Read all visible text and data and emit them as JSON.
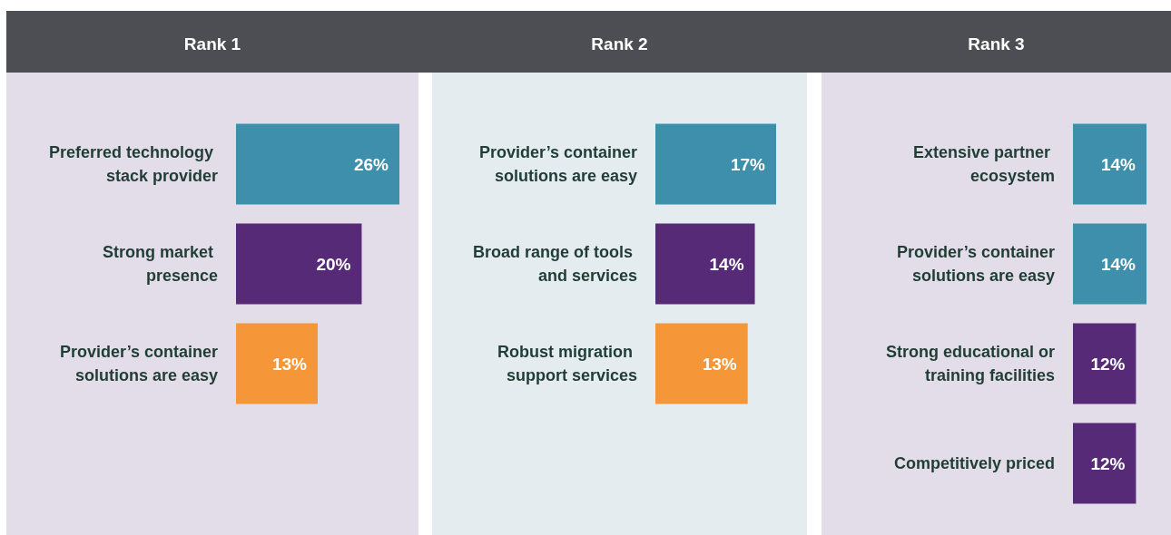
{
  "chart_data": [
    {
      "type": "bar",
      "orientation": "horizontal",
      "title": "Rank 1",
      "categories": [
        "Preferred technology stack provider",
        "Strong market presence",
        "Provider’s container solutions are easy"
      ],
      "values": [
        26,
        20,
        13
      ],
      "colors": [
        "#3e8fab",
        "#562a77",
        "#f59738"
      ],
      "value_labels": [
        "26%",
        "20%",
        "13%"
      ],
      "xlim": [
        0,
        26
      ]
    },
    {
      "type": "bar",
      "orientation": "horizontal",
      "title": "Rank 2",
      "categories": [
        "Provider’s container solutions are easy",
        "Broad range of tools and services",
        "Robust migration support services"
      ],
      "values": [
        17,
        14,
        13
      ],
      "colors": [
        "#3e8fab",
        "#562a77",
        "#f59738"
      ],
      "value_labels": [
        "17%",
        "14%",
        "13%"
      ],
      "xlim": [
        0,
        17
      ]
    },
    {
      "type": "bar",
      "orientation": "horizontal",
      "title": "Rank 3",
      "categories": [
        "Extensive partner ecosystem",
        "Provider’s container solutions are easy",
        "Strong educational or training facilities",
        "Competitively priced"
      ],
      "values": [
        14,
        14,
        12,
        12
      ],
      "colors": [
        "#3e8fab",
        "#3e8fab",
        "#562a77",
        "#562a77"
      ],
      "value_labels": [
        "14%",
        "14%",
        "12%",
        "12%"
      ],
      "xlim": [
        0,
        14
      ]
    }
  ]
}
